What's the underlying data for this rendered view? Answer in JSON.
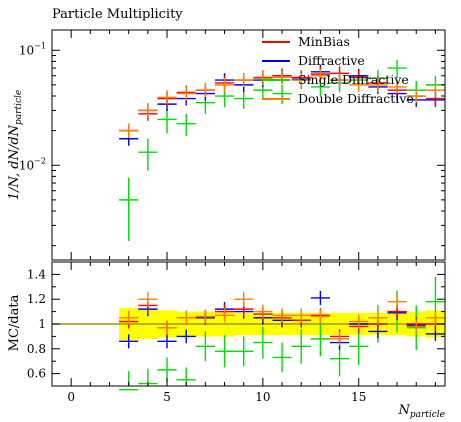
{
  "chart_data": {
    "type": "scatter",
    "title": "Particle Multiplicity",
    "main": {
      "ylabel": "1/N, dN/dN_particle",
      "yscale": "log",
      "ylim": [
        0.0015,
        0.15
      ],
      "yticks": [
        {
          "v": 0.1,
          "base": "10",
          "exp": "−1"
        },
        {
          "v": 0.01,
          "base": "10",
          "exp": "−2"
        }
      ],
      "legend_position": "top-right",
      "legend": [
        {
          "name": "MinBias",
          "color": "#ff0000"
        },
        {
          "name": "Diffractive",
          "color": "#0000ff"
        },
        {
          "name": "Single Diffractive",
          "color": "#00dd00"
        },
        {
          "name": "Double Diffractive",
          "color": "#ff8000"
        }
      ],
      "series": [
        {
          "name": "MinBias",
          "color": "#ff0000",
          "x": [
            3,
            4,
            5,
            6,
            7,
            8,
            9,
            10,
            11,
            12,
            13,
            14,
            15,
            16,
            17,
            18,
            19
          ],
          "y": [
            0.02,
            0.028,
            0.038,
            0.043,
            0.045,
            0.052,
            0.055,
            0.058,
            0.06,
            0.058,
            0.062,
            0.063,
            0.058,
            0.052,
            0.045,
            0.04,
            0.038
          ]
        },
        {
          "name": "Diffractive",
          "color": "#0000ff",
          "x": [
            3,
            4,
            5,
            6,
            7,
            8,
            9,
            10,
            11,
            12,
            13,
            14,
            15,
            16,
            17,
            18,
            19
          ],
          "y": [
            0.017,
            0.03,
            0.034,
            0.038,
            0.042,
            0.055,
            0.05,
            0.055,
            0.06,
            0.056,
            0.065,
            0.055,
            0.06,
            0.048,
            0.042,
            0.037,
            0.037
          ]
        },
        {
          "name": "Single Diffractive",
          "color": "#00dd00",
          "x": [
            3,
            4,
            5,
            6,
            7,
            8,
            9,
            10,
            11,
            12,
            13,
            14,
            15,
            16,
            17,
            18,
            19
          ],
          "y": [
            0.005,
            0.013,
            0.025,
            0.023,
            0.035,
            0.04,
            0.038,
            0.045,
            0.042,
            0.055,
            0.048,
            0.052,
            0.055,
            0.057,
            0.07,
            0.045,
            0.05
          ],
          "yerr": [
            0.0028,
            0.004,
            0.006,
            0.005,
            0.007,
            0.008,
            0.007,
            0.008,
            0.008,
            0.009,
            0.008,
            0.009,
            0.009,
            0.01,
            0.012,
            0.009,
            0.01
          ]
        },
        {
          "name": "Double Diffractive",
          "color": "#ff8000",
          "x": [
            3,
            4,
            5,
            6,
            7,
            8,
            9,
            10,
            11,
            12,
            13,
            14,
            15,
            16,
            17,
            18,
            19
          ],
          "y": [
            0.02,
            0.03,
            0.039,
            0.042,
            0.045,
            0.05,
            0.055,
            0.057,
            0.058,
            0.055,
            0.06,
            0.055,
            0.05,
            0.05,
            0.048,
            0.04,
            0.045
          ]
        }
      ]
    },
    "ratio": {
      "ylabel": "MC/data",
      "ylim": [
        0.5,
        1.5
      ],
      "yticks": [
        {
          "v": 0.6,
          "label": "0.6"
        },
        {
          "v": 0.8,
          "label": "0.8"
        },
        {
          "v": 1.0,
          "label": "1"
        },
        {
          "v": 1.2,
          "label": "1.2"
        },
        {
          "v": 1.4,
          "label": "1.4"
        }
      ],
      "band": {
        "color": "#ffff00",
        "x": [
          2.5,
          3.5,
          4.5,
          5.5,
          6.5,
          7.5,
          8.5,
          9.5,
          10.5,
          11.5,
          12.5,
          13.5,
          14.5,
          15.5,
          16.5,
          17.5,
          18.5,
          19.5
        ],
        "lo": [
          0.87,
          0.88,
          0.89,
          0.9,
          0.9,
          0.9,
          0.91,
          0.91,
          0.91,
          0.91,
          0.91,
          0.91,
          0.91,
          0.91,
          0.91,
          0.9,
          0.89,
          0.89
        ],
        "hi": [
          1.13,
          1.12,
          1.11,
          1.1,
          1.1,
          1.1,
          1.09,
          1.09,
          1.09,
          1.09,
          1.09,
          1.09,
          1.09,
          1.09,
          1.09,
          1.1,
          1.11,
          1.11
        ]
      },
      "series": [
        {
          "name": "MinBias",
          "color": "#ff0000",
          "x": [
            3,
            4,
            5,
            6,
            7,
            8,
            9,
            10,
            11,
            12,
            13,
            14,
            15,
            16,
            17,
            18,
            19
          ],
          "y": [
            1.02,
            1.15,
            0.97,
            1.05,
            1.06,
            1.1,
            1.12,
            1.08,
            1.05,
            1.03,
            1.07,
            0.9,
            0.98,
            1.0,
            1.1,
            1.0,
            1.0
          ]
        },
        {
          "name": "Diffractive",
          "color": "#0000ff",
          "x": [
            3,
            4,
            5,
            6,
            7,
            8,
            9,
            10,
            11,
            12,
            13,
            14,
            15,
            16,
            17,
            18,
            19
          ],
          "y": [
            0.86,
            1.12,
            0.86,
            0.9,
            1.05,
            1.12,
            1.1,
            1.05,
            1.03,
            1.03,
            1.21,
            0.85,
            1.0,
            0.94,
            1.09,
            0.99,
            0.92
          ]
        },
        {
          "name": "Single Diffractive",
          "color": "#00dd00",
          "x": [
            3,
            4,
            5,
            6,
            7,
            8,
            9,
            10,
            11,
            12,
            13,
            14,
            15,
            16,
            17,
            18,
            19
          ],
          "y": [
            0.35,
            0.52,
            0.63,
            0.55,
            0.82,
            0.78,
            0.78,
            0.85,
            0.73,
            0.82,
            0.88,
            0.72,
            0.82,
            1.0,
            1.1,
            0.97,
            1.18
          ],
          "yerr": [
            0.15,
            0.12,
            0.1,
            0.1,
            0.12,
            0.13,
            0.12,
            0.13,
            0.12,
            0.14,
            0.14,
            0.14,
            0.15,
            0.15,
            0.17,
            0.18,
            0.2
          ]
        },
        {
          "name": "Double Diffractive",
          "color": "#ff8000",
          "x": [
            3,
            4,
            5,
            6,
            7,
            8,
            9,
            10,
            11,
            12,
            13,
            14,
            15,
            16,
            17,
            18,
            19
          ],
          "y": [
            1.05,
            1.2,
            0.97,
            1.05,
            1.06,
            1.07,
            1.2,
            1.1,
            1.07,
            1.07,
            1.06,
            0.88,
            1.02,
            1.05,
            1.18,
            0.98,
            1.05
          ]
        }
      ]
    },
    "x": {
      "label": "N_particle",
      "xlim": [
        -1,
        19.5
      ],
      "xticks": [
        0,
        5,
        10,
        15
      ]
    }
  }
}
